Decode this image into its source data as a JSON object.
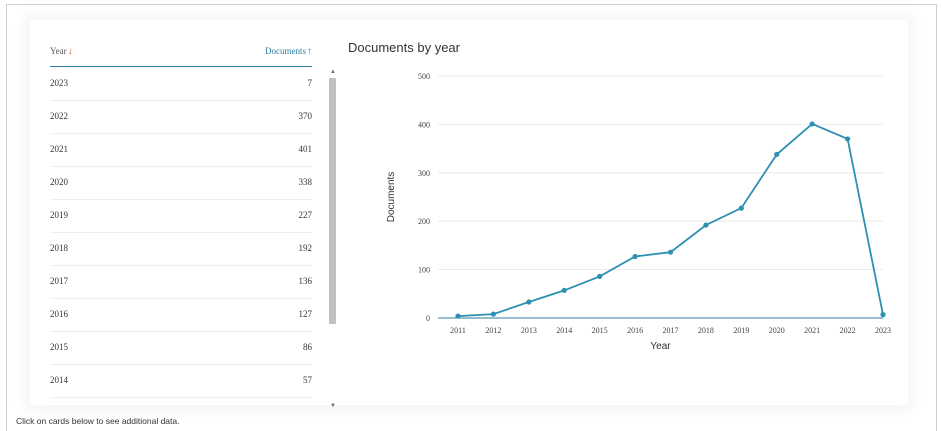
{
  "table": {
    "year_header": "Year",
    "docs_header": "Documents",
    "rows": [
      {
        "year": "2023",
        "docs": "7"
      },
      {
        "year": "2022",
        "docs": "370"
      },
      {
        "year": "2021",
        "docs": "401"
      },
      {
        "year": "2020",
        "docs": "338"
      },
      {
        "year": "2019",
        "docs": "227"
      },
      {
        "year": "2018",
        "docs": "192"
      },
      {
        "year": "2017",
        "docs": "136"
      },
      {
        "year": "2016",
        "docs": "127"
      },
      {
        "year": "2015",
        "docs": "86"
      },
      {
        "year": "2014",
        "docs": "57"
      }
    ]
  },
  "footer": {
    "note": "Click on cards below to see additional data."
  },
  "colors": {
    "line": "#2e8fb3",
    "accent": "#2e7ea2",
    "sort_arrow": "#e0582e"
  },
  "chart_data": {
    "type": "line",
    "title": "Documents by year",
    "xlabel": "Year",
    "ylabel": "Documents",
    "x": [
      "2011",
      "2012",
      "2013",
      "2014",
      "2015",
      "2016",
      "2017",
      "2018",
      "2019",
      "2020",
      "2021",
      "2022",
      "2023"
    ],
    "series": [
      {
        "values": [
          4,
          8,
          33,
          57,
          86,
          127,
          136,
          192,
          227,
          338,
          401,
          370,
          7
        ]
      }
    ],
    "ylim": [
      0,
      500
    ],
    "yticks": [
      0,
      100,
      200,
      300,
      400,
      500
    ],
    "grid": true
  }
}
